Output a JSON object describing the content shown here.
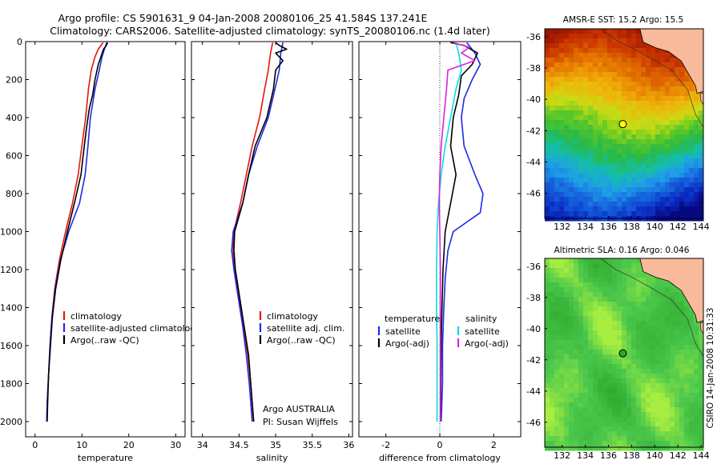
{
  "title_line1": "Argo profile: CS 5901631_9 04-Jan-2008 20080106_25 41.584S 137.241E",
  "title_line2": "Climatology: CARS2006. Satellite-adjusted climatology: synTS_20080106.nc (1.4d later)",
  "chart_data": [
    {
      "type": "line",
      "xlabel": "temperature",
      "xlim": [
        -2,
        32
      ],
      "ylim": [
        0,
        2080
      ],
      "y_reversed": true,
      "xticks": [
        "0",
        "10",
        "20",
        "30"
      ],
      "yticks": [
        "0",
        "200",
        "400",
        "600",
        "800",
        "1000",
        "1200",
        "1400",
        "1600",
        "1800",
        "2000"
      ],
      "legend": [
        "climatology",
        "satellite-adjusted climatology",
        "Argo(..raw -QC)"
      ],
      "series": [
        {
          "name": "climatology",
          "color": "#e8160c",
          "points": [
            [
              14.5,
              5
            ],
            [
              13.5,
              40
            ],
            [
              12.8,
              80
            ],
            [
              12,
              150
            ],
            [
              11.4,
              250
            ],
            [
              10.8,
              400
            ],
            [
              10,
              550
            ],
            [
              9.2,
              700
            ],
            [
              8,
              850
            ],
            [
              6.5,
              1000
            ],
            [
              5.2,
              1150
            ],
            [
              4.2,
              1300
            ],
            [
              3.6,
              1450
            ],
            [
              3.2,
              1600
            ],
            [
              2.9,
              1750
            ],
            [
              2.6,
              1900
            ],
            [
              2.5,
              2000
            ]
          ]
        },
        {
          "name": "satellite-adjusted climatology",
          "color": "#1f2ae6",
          "points": [
            [
              15.3,
              5
            ],
            [
              14.8,
              40
            ],
            [
              14.3,
              80
            ],
            [
              13.7,
              150
            ],
            [
              12.8,
              250
            ],
            [
              11.8,
              400
            ],
            [
              11.3,
              550
            ],
            [
              10.7,
              700
            ],
            [
              9.5,
              850
            ],
            [
              7.2,
              1000
            ],
            [
              5.4,
              1150
            ],
            [
              4.3,
              1300
            ],
            [
              3.6,
              1450
            ],
            [
              3.2,
              1600
            ],
            [
              2.9,
              1750
            ],
            [
              2.6,
              1900
            ],
            [
              2.5,
              2000
            ]
          ]
        },
        {
          "name": "Argo(..raw -QC)",
          "color": "#000000",
          "points": [
            [
              15.5,
              5
            ],
            [
              15.2,
              20
            ],
            [
              14.6,
              40
            ],
            [
              14.2,
              70
            ],
            [
              13.5,
              120
            ],
            [
              12.8,
              200
            ],
            [
              12.3,
              280
            ],
            [
              11.6,
              350
            ],
            [
              11,
              450
            ],
            [
              10.5,
              550
            ],
            [
              9.8,
              700
            ],
            [
              8.4,
              850
            ],
            [
              6.9,
              1000
            ],
            [
              5.5,
              1150
            ],
            [
              4.4,
              1300
            ],
            [
              3.7,
              1450
            ],
            [
              3.3,
              1600
            ],
            [
              2.9,
              1750
            ],
            [
              2.7,
              1900
            ],
            [
              2.6,
              2000
            ]
          ]
        }
      ]
    },
    {
      "type": "line",
      "xlabel": "salinity",
      "xlim": [
        33.85,
        36.05
      ],
      "ylim": [
        0,
        2080
      ],
      "y_reversed": true,
      "xticks": [
        "34",
        "34.5",
        "35",
        "35.5",
        "36"
      ],
      "legend": [
        "climatology",
        "satellite adj. clim.",
        "Argo(..raw -QC)"
      ],
      "annotation": [
        "Argo AUSTRALIA",
        "PI: Susan Wijffels"
      ],
      "series": [
        {
          "name": "climatology",
          "color": "#e8160c",
          "points": [
            [
              34.96,
              5
            ],
            [
              34.93,
              60
            ],
            [
              34.9,
              150
            ],
            [
              34.85,
              250
            ],
            [
              34.78,
              400
            ],
            [
              34.68,
              550
            ],
            [
              34.6,
              700
            ],
            [
              34.52,
              850
            ],
            [
              34.43,
              1000
            ],
            [
              34.42,
              1100
            ],
            [
              34.44,
              1200
            ],
            [
              34.5,
              1350
            ],
            [
              34.56,
              1500
            ],
            [
              34.62,
              1650
            ],
            [
              34.66,
              1800
            ],
            [
              34.69,
              1950
            ],
            [
              34.7,
              2000
            ]
          ]
        },
        {
          "name": "satellite adj. clim.",
          "color": "#1f2ae6",
          "points": [
            [
              35.1,
              5
            ],
            [
              35.07,
              60
            ],
            [
              35.05,
              150
            ],
            [
              34.99,
              250
            ],
            [
              34.9,
              400
            ],
            [
              34.75,
              550
            ],
            [
              34.63,
              700
            ],
            [
              34.55,
              850
            ],
            [
              34.42,
              1000
            ],
            [
              34.4,
              1100
            ],
            [
              34.43,
              1200
            ],
            [
              34.49,
              1350
            ],
            [
              34.55,
              1500
            ],
            [
              34.6,
              1650
            ],
            [
              34.64,
              1800
            ],
            [
              34.67,
              1950
            ],
            [
              34.68,
              2000
            ]
          ]
        },
        {
          "name": "Argo(..raw -QC)",
          "color": "#000000",
          "points": [
            [
              35.0,
              5
            ],
            [
              35.05,
              20
            ],
            [
              35.15,
              40
            ],
            [
              35.0,
              60
            ],
            [
              35.1,
              100
            ],
            [
              35.0,
              150
            ],
            [
              34.97,
              250
            ],
            [
              34.88,
              400
            ],
            [
              34.72,
              550
            ],
            [
              34.63,
              700
            ],
            [
              34.55,
              850
            ],
            [
              34.44,
              1000
            ],
            [
              34.43,
              1100
            ],
            [
              34.45,
              1200
            ],
            [
              34.51,
              1350
            ],
            [
              34.57,
              1500
            ],
            [
              34.63,
              1650
            ],
            [
              34.66,
              1800
            ],
            [
              34.69,
              1950
            ],
            [
              34.7,
              2000
            ]
          ]
        }
      ]
    },
    {
      "type": "line",
      "xlabel": "difference from climatology",
      "xlim": [
        -3,
        3
      ],
      "ylim": [
        0,
        2080
      ],
      "y_reversed": true,
      "xticks": [
        "-2",
        "0",
        "2"
      ],
      "legend_headers": [
        "temperature",
        "salinity"
      ],
      "legend": [
        "satellite",
        "Argo(-adj)",
        "satellite",
        "Argo(-adj)"
      ],
      "series": [
        {
          "name": "temperature satellite",
          "color": "#1f2ae6",
          "points": [
            [
              1.0,
              5
            ],
            [
              1.3,
              60
            ],
            [
              1.5,
              120
            ],
            [
              1.2,
              200
            ],
            [
              0.9,
              300
            ],
            [
              0.8,
              400
            ],
            [
              0.9,
              550
            ],
            [
              1.3,
              700
            ],
            [
              1.6,
              800
            ],
            [
              1.5,
              900
            ],
            [
              0.5,
              1000
            ],
            [
              0.3,
              1100
            ],
            [
              0.2,
              1250
            ],
            [
              0.15,
              1400
            ],
            [
              0.1,
              1600
            ],
            [
              0.1,
              1800
            ],
            [
              0.05,
              2000
            ]
          ]
        },
        {
          "name": "temperature Argo(-adj)",
          "color": "#000000",
          "points": [
            [
              0.4,
              5
            ],
            [
              0.9,
              20
            ],
            [
              1.4,
              60
            ],
            [
              1.2,
              120
            ],
            [
              0.8,
              180
            ],
            [
              0.7,
              280
            ],
            [
              0.5,
              400
            ],
            [
              0.4,
              550
            ],
            [
              0.6,
              700
            ],
            [
              0.4,
              850
            ],
            [
              0.2,
              1000
            ],
            [
              0.12,
              1200
            ],
            [
              0.08,
              1400
            ],
            [
              0.05,
              1600
            ],
            [
              0.04,
              1800
            ],
            [
              0.03,
              2000
            ]
          ]
        },
        {
          "name": "salinity satellite",
          "color": "#00e0e0",
          "points": [
            [
              0.6,
              5
            ],
            [
              0.7,
              60
            ],
            [
              0.8,
              150
            ],
            [
              0.6,
              250
            ],
            [
              0.4,
              400
            ],
            [
              0.2,
              550
            ],
            [
              0.05,
              700
            ],
            [
              -0.05,
              850
            ],
            [
              -0.1,
              1000
            ],
            [
              -0.12,
              1200
            ],
            [
              -0.12,
              1400
            ],
            [
              -0.1,
              1600
            ],
            [
              -0.1,
              1800
            ],
            [
              -0.1,
              2000
            ]
          ]
        },
        {
          "name": "salinity Argo(-adj)",
          "color": "#e020e0",
          "points": [
            [
              0.5,
              5
            ],
            [
              1.1,
              30
            ],
            [
              0.8,
              60
            ],
            [
              1.3,
              100
            ],
            [
              0.3,
              150
            ],
            [
              0.25,
              250
            ],
            [
              0.15,
              400
            ],
            [
              0.05,
              550
            ],
            [
              0.0,
              700
            ],
            [
              -0.02,
              850
            ],
            [
              0.0,
              1000
            ],
            [
              0.02,
              1200
            ],
            [
              0.02,
              1400
            ],
            [
              0.02,
              1600
            ],
            [
              0.02,
              1800
            ],
            [
              0.02,
              2000
            ]
          ]
        }
      ]
    },
    {
      "type": "heatmap",
      "title": "AMSR-E SST: 15.2 Argo: 15.5",
      "xlim": [
        130.5,
        144.2
      ],
      "ylim": [
        -47.6,
        -35.5
      ],
      "xticks": [
        "132",
        "134",
        "136",
        "138",
        "140",
        "142",
        "144"
      ],
      "yticks": [
        "-36",
        "-38",
        "-40",
        "-42",
        "-44",
        "-46"
      ],
      "marker": {
        "lon": 137.241,
        "lat": -41.584,
        "color": "#ffff00"
      },
      "colors": {
        "land": "#f9b99b",
        "top": "#b22800",
        "mid": "#3cba3c",
        "bottom": "#0a1aa0"
      }
    },
    {
      "type": "heatmap",
      "title": "Altimetric SLA: 0.16 Argo: 0.046",
      "xlim": [
        130.5,
        144.2
      ],
      "ylim": [
        -47.6,
        -35.5
      ],
      "xticks": [
        "132",
        "134",
        "136",
        "138",
        "140",
        "142",
        "144"
      ],
      "yticks": [
        "-36",
        "-38",
        "-40",
        "-42",
        "-44",
        "-46"
      ],
      "marker": {
        "lon": 137.241,
        "lat": -41.584,
        "color": "#2ea82e"
      },
      "colors": {
        "land": "#f9b99b",
        "base": "#4cc84c",
        "light": "#a8ee40",
        "dark": "#28a428"
      }
    }
  ],
  "side_label": "CSIRO 14-Jan-2008 10:31:33"
}
